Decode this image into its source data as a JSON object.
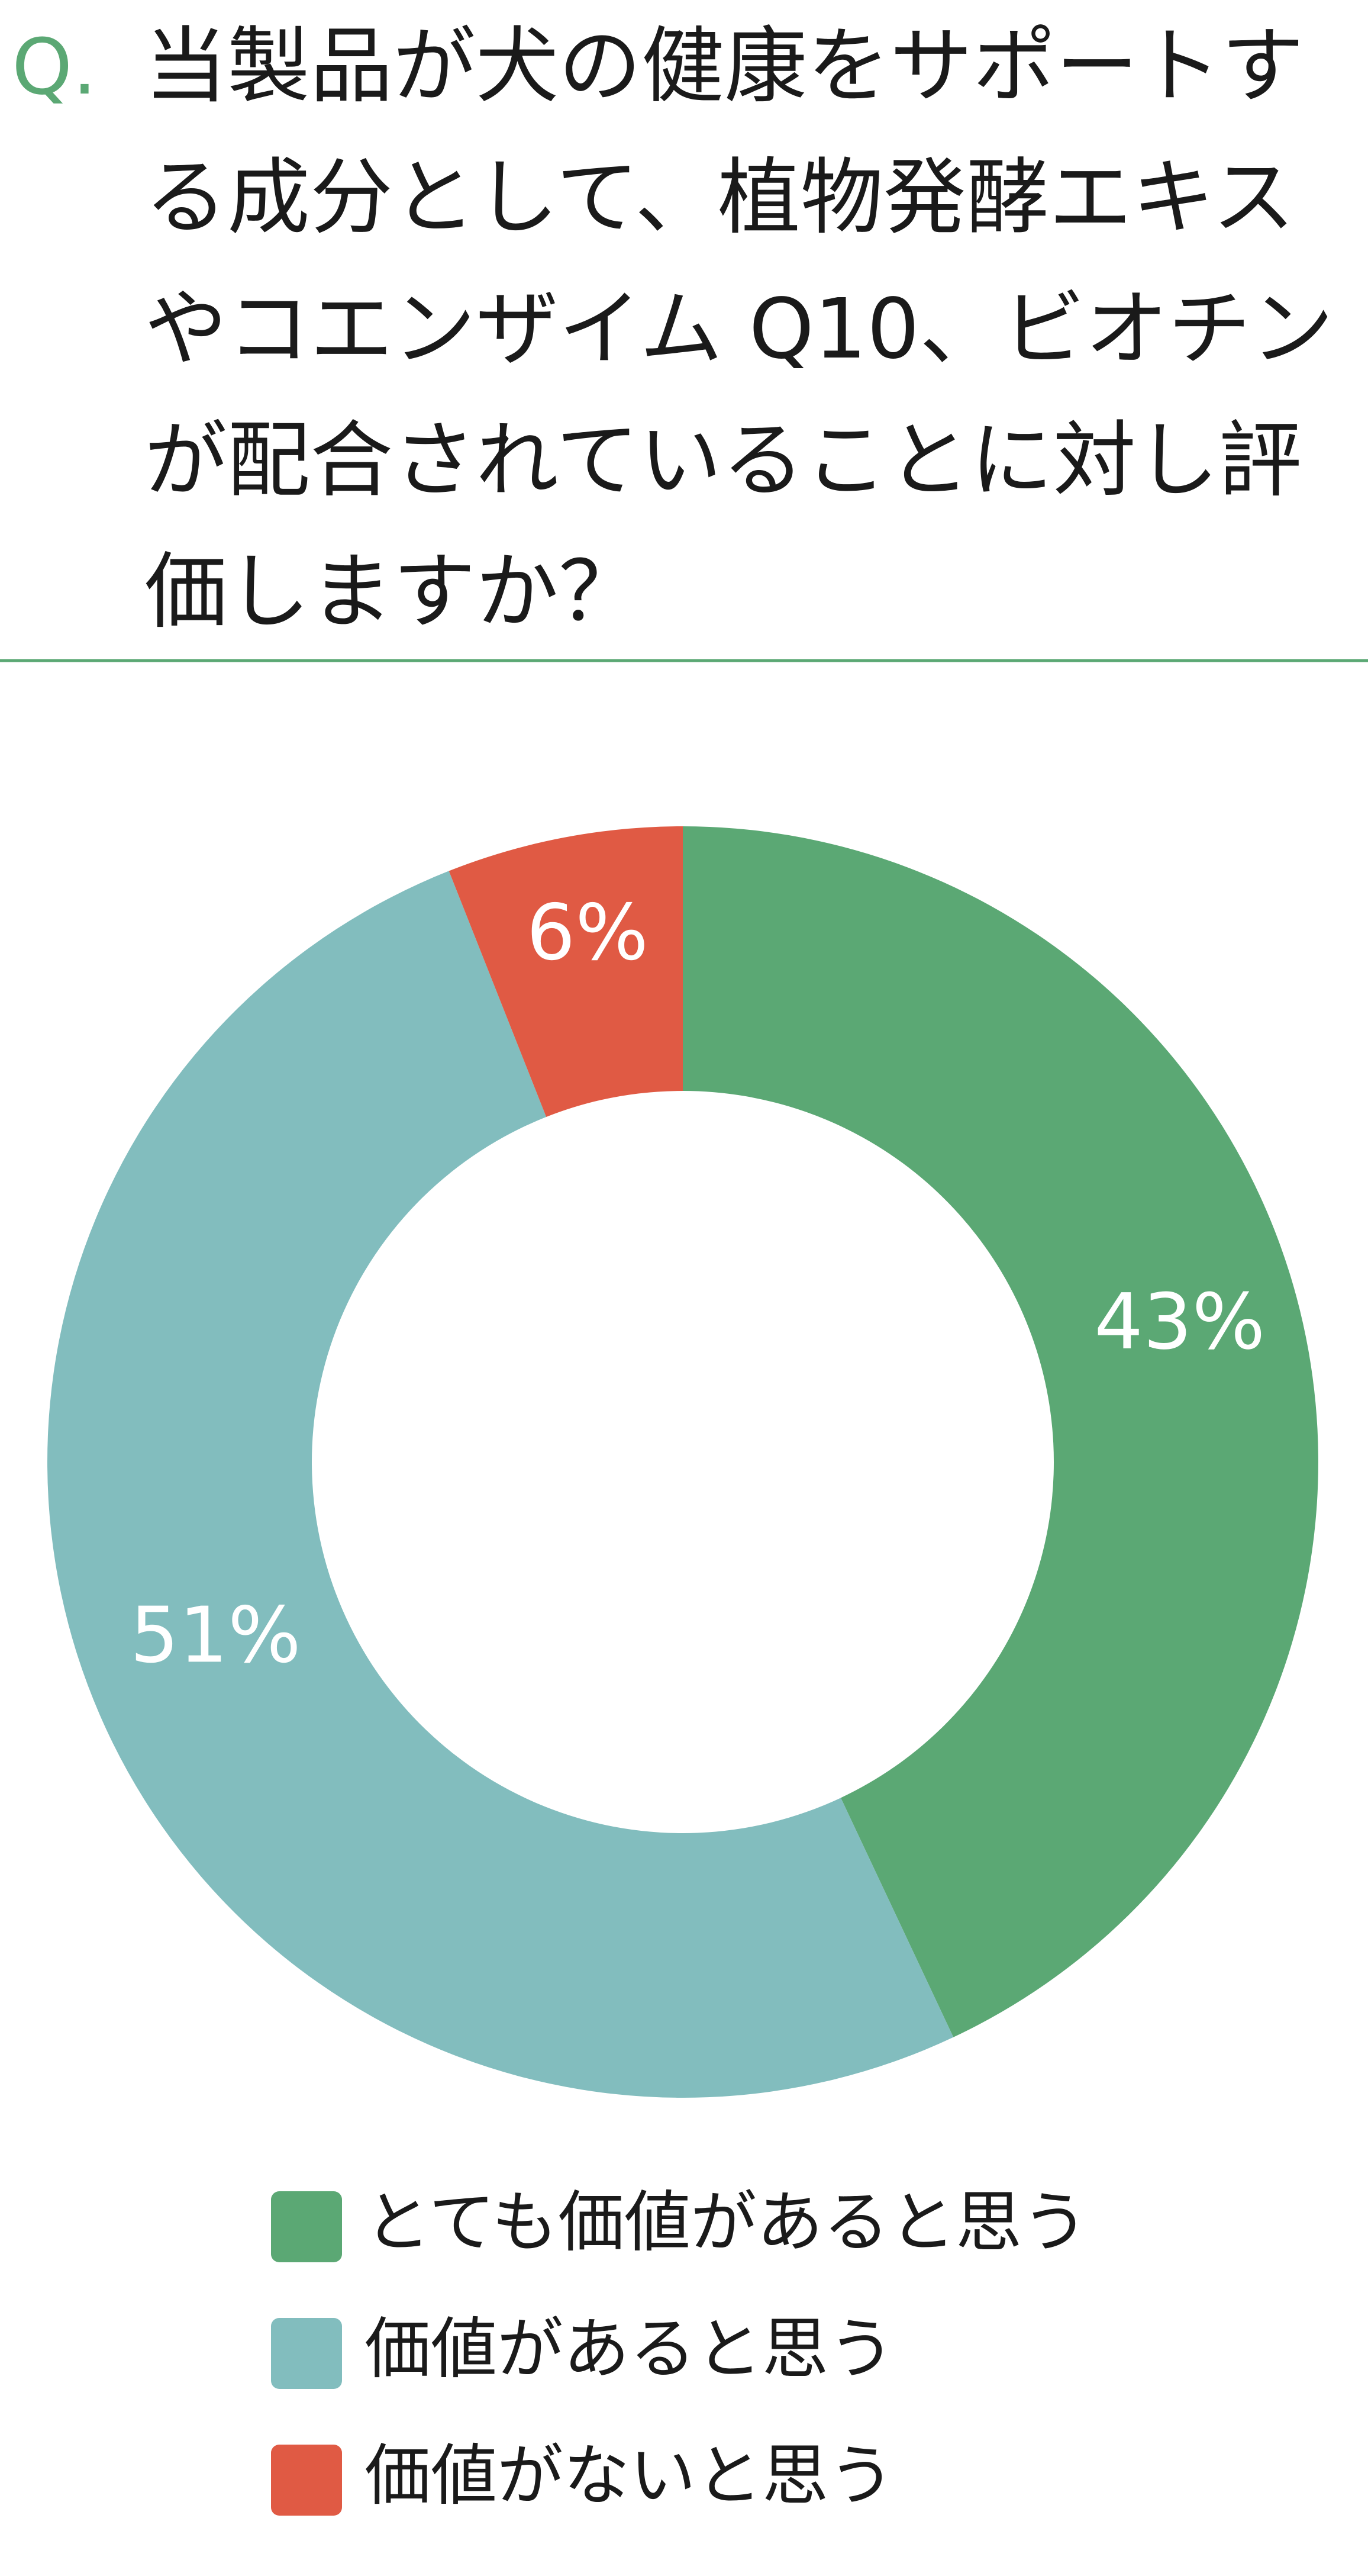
{
  "chart_data": {
    "type": "donut",
    "title_prefix": "Q.",
    "title": [
      "当製品が犬の健康をサポートす",
      "る成分として、植物発酵エキス",
      "やコエンザイム Q10、ビオチン",
      "が配合されていることに対し評",
      "価しますか？"
    ],
    "categories": [
      "とても価値があると思う",
      "価値があると思う",
      "価値がないと思う"
    ],
    "values": [
      43,
      51,
      6
    ],
    "value_labels": [
      "43%",
      "51%",
      "6%"
    ],
    "colors": [
      "#5ba874",
      "#82bdbe",
      "#e05a44"
    ]
  }
}
